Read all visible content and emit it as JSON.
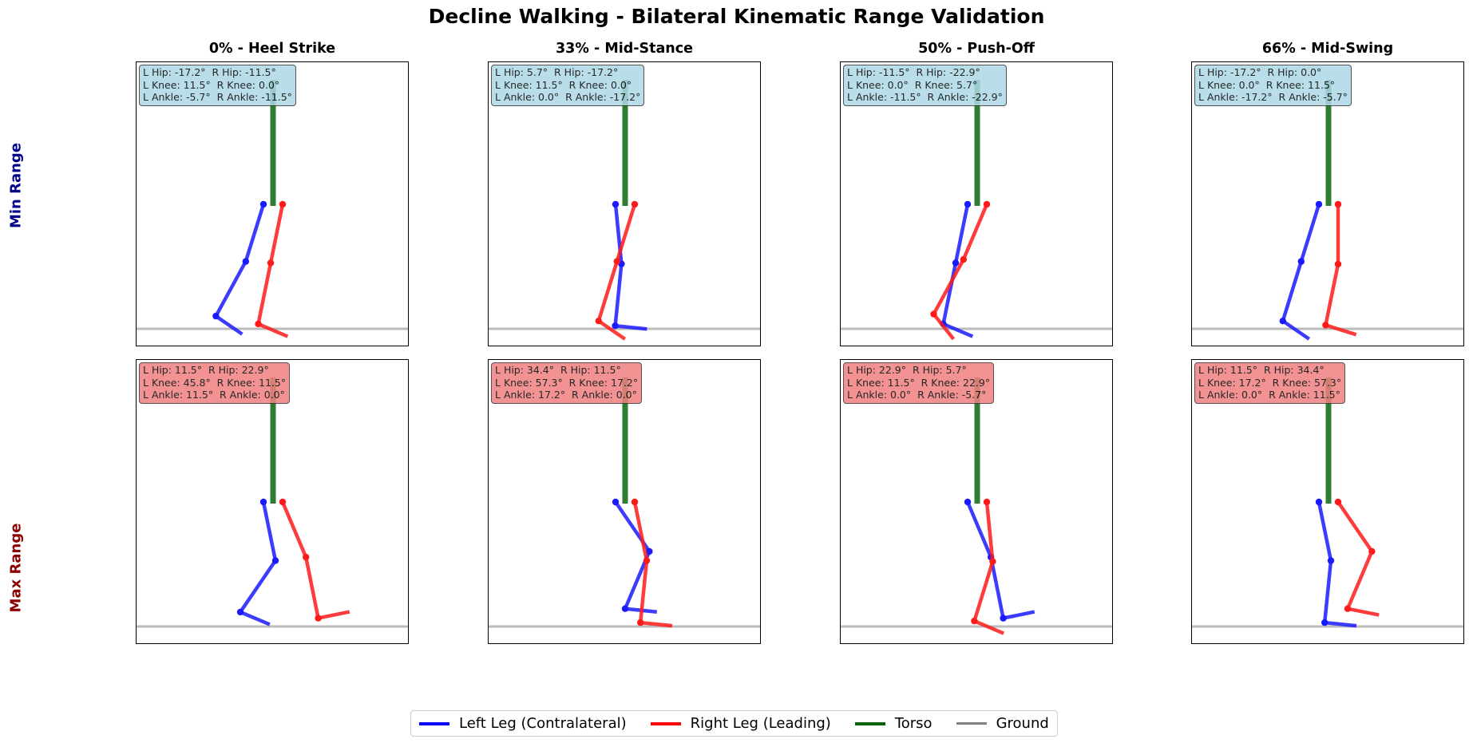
{
  "title": "Decline Walking - Bilateral Kinematic Range Validation",
  "columns": [
    "0% - Heel Strike",
    "33% - Mid-Stance",
    "50% - Push-Off",
    "66% - Mid-Swing"
  ],
  "rows": [
    {
      "label": "Min Range",
      "color": "#00008b",
      "box": "min"
    },
    {
      "label": "Max Range",
      "color": "#8b0000",
      "box": "max"
    }
  ],
  "panels": [
    {
      "row": 0,
      "col": 0,
      "angles": [
        "L Hip: -17.2°  R Hip: -11.5°",
        "L Knee: 11.5°  R Knee: 0.0°",
        "L Ankle: -5.7°  R Ankle: -11.5°"
      ],
      "left": {
        "hip": -17.2,
        "knee": 11.5,
        "ankle": -5.7
      },
      "right": {
        "hip": -11.5,
        "knee": 0.0,
        "ankle": -11.5
      }
    },
    {
      "row": 0,
      "col": 1,
      "angles": [
        "L Hip: 5.7°  R Hip: -17.2°",
        "L Knee: 11.5°  R Knee: 0.0°",
        "L Ankle: 0.0°  R Ankle: -17.2°"
      ],
      "left": {
        "hip": 5.7,
        "knee": 11.5,
        "ankle": 0.0
      },
      "right": {
        "hip": -17.2,
        "knee": 0.0,
        "ankle": -17.2
      }
    },
    {
      "row": 0,
      "col": 2,
      "angles": [
        "L Hip: -11.5°  R Hip: -22.9°",
        "L Knee: 0.0°  R Knee: 5.7°",
        "L Ankle: -11.5°  R Ankle: -22.9°"
      ],
      "left": {
        "hip": -11.5,
        "knee": 0.0,
        "ankle": -11.5
      },
      "right": {
        "hip": -22.9,
        "knee": 5.7,
        "ankle": -22.9
      }
    },
    {
      "row": 0,
      "col": 3,
      "angles": [
        "L Hip: -17.2°  R Hip: 0.0°",
        "L Knee: 0.0°  R Knee: 11.5°",
        "L Ankle: -17.2°  R Ankle: -5.7°"
      ],
      "left": {
        "hip": -17.2,
        "knee": 0.0,
        "ankle": -17.2
      },
      "right": {
        "hip": 0.0,
        "knee": 11.5,
        "ankle": -5.7
      }
    },
    {
      "row": 1,
      "col": 0,
      "angles": [
        "L Hip: 11.5°  R Hip: 22.9°",
        "L Knee: 45.8°  R Knee: 11.5°",
        "L Ankle: 11.5°  R Ankle: 0.0°"
      ],
      "left": {
        "hip": 11.5,
        "knee": 45.8,
        "ankle": 11.5
      },
      "right": {
        "hip": 22.9,
        "knee": 11.5,
        "ankle": 0.0
      }
    },
    {
      "row": 1,
      "col": 1,
      "angles": [
        "L Hip: 34.4°  R Hip: 11.5°",
        "L Knee: 57.3°  R Knee: 17.2°",
        "L Ankle: 17.2°  R Ankle: 0.0°"
      ],
      "left": {
        "hip": 34.4,
        "knee": 57.3,
        "ankle": 17.2
      },
      "right": {
        "hip": 11.5,
        "knee": 17.2,
        "ankle": 0.0
      }
    },
    {
      "row": 1,
      "col": 2,
      "angles": [
        "L Hip: 22.9°  R Hip: 5.7°",
        "L Knee: 11.5°  R Knee: 22.9°",
        "L Ankle: 0.0°  R Ankle: -5.7°"
      ],
      "left": {
        "hip": 22.9,
        "knee": 11.5,
        "ankle": 0.0
      },
      "right": {
        "hip": 5.7,
        "knee": 22.9,
        "ankle": -5.7
      }
    },
    {
      "row": 1,
      "col": 3,
      "angles": [
        "L Hip: 11.5°  R Hip: 34.4°",
        "L Knee: 17.2°  R Knee: 57.3°",
        "L Ankle: 0.0°  R Ankle: 11.5°"
      ],
      "left": {
        "hip": 11.5,
        "knee": 17.2,
        "ankle": 0.0
      },
      "right": {
        "hip": 34.4,
        "knee": 57.3,
        "ankle": 11.5
      }
    }
  ],
  "legend": [
    {
      "label": "Left Leg (Contralateral)",
      "color": "#0000ff"
    },
    {
      "label": "Right Leg (Leading)",
      "color": "#ff0000"
    },
    {
      "label": "Torso",
      "color": "#006400"
    },
    {
      "label": "Ground",
      "color": "#808080"
    }
  ]
}
